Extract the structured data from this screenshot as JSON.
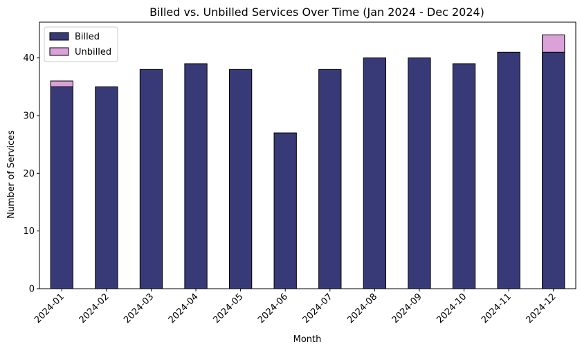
{
  "chart_data": {
    "type": "bar",
    "stacked": true,
    "title": "Billed vs. Unbilled Services Over Time (Jan 2024 - Dec 2024)",
    "xlabel": "Month",
    "ylabel": "Number of Services",
    "categories": [
      "2024-01",
      "2024-02",
      "2024-03",
      "2024-04",
      "2024-05",
      "2024-06",
      "2024-07",
      "2024-08",
      "2024-09",
      "2024-10",
      "2024-11",
      "2024-12"
    ],
    "series": [
      {
        "name": "Billed",
        "color": "#383a78",
        "values": [
          35,
          35,
          38,
          39,
          38,
          27,
          38,
          40,
          40,
          39,
          41,
          41
        ]
      },
      {
        "name": "Unbilled",
        "color": "#dba1d9",
        "values": [
          1,
          0,
          0,
          0,
          0,
          0,
          0,
          0,
          0,
          0,
          0,
          3
        ]
      }
    ],
    "ylim": [
      0,
      46.2
    ],
    "yticks": [
      0,
      10,
      20,
      30,
      40
    ],
    "grid": false,
    "legend_position": "top-left"
  }
}
